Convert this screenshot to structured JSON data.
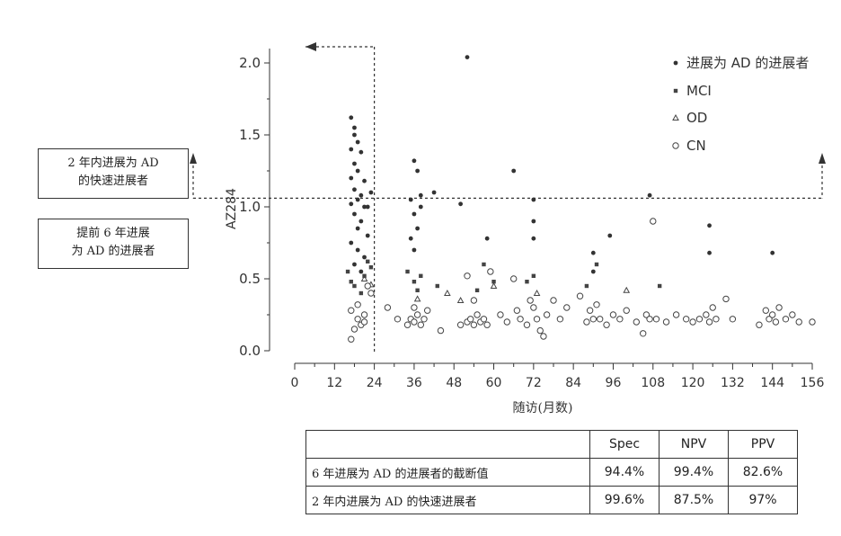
{
  "chart_data": {
    "type": "scatter",
    "xlabel": "随访(月数)",
    "ylabel": "AZ284",
    "xlim": [
      0,
      156
    ],
    "ylim": [
      0,
      2.1
    ],
    "xticks": [
      "0",
      "12",
      "24",
      "36",
      "48",
      "60",
      "72",
      "84",
      "96",
      "108",
      "120",
      "132",
      "144",
      "156"
    ],
    "yticks": [
      "0.0",
      "0.5",
      "1.0",
      "1.5",
      "2.0"
    ],
    "cutoff_y": 1.06,
    "cutoff_x": 24,
    "legend_position": "top-right",
    "series": [
      {
        "name": "进展为 AD 的进展者",
        "marker": "filled-circle",
        "points": [
          [
            17,
            1.62
          ],
          [
            18,
            1.55
          ],
          [
            18,
            1.5
          ],
          [
            19,
            1.45
          ],
          [
            17,
            1.4
          ],
          [
            20,
            1.38
          ],
          [
            18,
            1.3
          ],
          [
            19,
            1.25
          ],
          [
            17,
            1.2
          ],
          [
            21,
            1.18
          ],
          [
            18,
            1.12
          ],
          [
            20,
            1.08
          ],
          [
            19,
            1.05
          ],
          [
            17,
            1.02
          ],
          [
            21,
            1.0
          ],
          [
            18,
            0.95
          ],
          [
            20,
            0.9
          ],
          [
            19,
            0.85
          ],
          [
            22,
            0.8
          ],
          [
            17,
            0.75
          ],
          [
            19,
            0.7
          ],
          [
            21,
            0.65
          ],
          [
            18,
            0.6
          ],
          [
            20,
            0.55
          ],
          [
            23,
            1.1
          ],
          [
            22,
            1.0
          ],
          [
            36,
            1.32
          ],
          [
            37,
            1.25
          ],
          [
            35,
            1.05
          ],
          [
            36,
            0.95
          ],
          [
            37,
            0.85
          ],
          [
            38,
            1.0
          ],
          [
            35,
            0.78
          ],
          [
            36,
            0.7
          ],
          [
            38,
            1.08
          ],
          [
            42,
            1.1
          ],
          [
            50,
            1.02
          ],
          [
            52,
            2.04
          ],
          [
            58,
            0.78
          ],
          [
            66,
            1.25
          ],
          [
            72,
            1.05
          ],
          [
            72,
            0.9
          ],
          [
            72,
            0.78
          ],
          [
            90,
            0.68
          ],
          [
            90,
            0.55
          ],
          [
            95,
            0.8
          ],
          [
            107,
            1.08
          ],
          [
            125,
            0.87
          ],
          [
            125,
            0.68
          ],
          [
            144,
            0.68
          ]
        ]
      },
      {
        "name": "MCI",
        "marker": "filled-square",
        "points": [
          [
            16,
            0.55
          ],
          [
            17,
            0.48
          ],
          [
            18,
            0.45
          ],
          [
            20,
            0.4
          ],
          [
            21,
            0.52
          ],
          [
            22,
            0.62
          ],
          [
            23,
            0.58
          ],
          [
            34,
            0.55
          ],
          [
            36,
            0.48
          ],
          [
            37,
            0.42
          ],
          [
            38,
            0.52
          ],
          [
            43,
            0.45
          ],
          [
            55,
            0.42
          ],
          [
            57,
            0.6
          ],
          [
            60,
            0.48
          ],
          [
            70,
            0.48
          ],
          [
            72,
            0.52
          ],
          [
            88,
            0.45
          ],
          [
            91,
            0.6
          ],
          [
            110,
            0.45
          ]
        ]
      },
      {
        "name": "OD",
        "marker": "triangle",
        "points": [
          [
            21,
            0.5
          ],
          [
            23,
            0.46
          ],
          [
            37,
            0.36
          ],
          [
            46,
            0.4
          ],
          [
            50,
            0.35
          ],
          [
            60,
            0.45
          ],
          [
            73,
            0.4
          ],
          [
            100,
            0.42
          ]
        ]
      },
      {
        "name": "CN",
        "marker": "open-circle",
        "points": [
          [
            17,
            0.08
          ],
          [
            18,
            0.15
          ],
          [
            19,
            0.22
          ],
          [
            20,
            0.18
          ],
          [
            21,
            0.25
          ],
          [
            17,
            0.28
          ],
          [
            19,
            0.32
          ],
          [
            21,
            0.2
          ],
          [
            22,
            0.45
          ],
          [
            23,
            0.4
          ],
          [
            28,
            0.3
          ],
          [
            31,
            0.22
          ],
          [
            34,
            0.18
          ],
          [
            35,
            0.22
          ],
          [
            36,
            0.2
          ],
          [
            37,
            0.25
          ],
          [
            38,
            0.18
          ],
          [
            39,
            0.22
          ],
          [
            40,
            0.28
          ],
          [
            36,
            0.3
          ],
          [
            44,
            0.14
          ],
          [
            50,
            0.18
          ],
          [
            52,
            0.2
          ],
          [
            53,
            0.22
          ],
          [
            54,
            0.18
          ],
          [
            55,
            0.25
          ],
          [
            56,
            0.2
          ],
          [
            57,
            0.22
          ],
          [
            58,
            0.18
          ],
          [
            59,
            0.55
          ],
          [
            54,
            0.35
          ],
          [
            52,
            0.52
          ],
          [
            62,
            0.25
          ],
          [
            64,
            0.2
          ],
          [
            66,
            0.5
          ],
          [
            67,
            0.28
          ],
          [
            68,
            0.22
          ],
          [
            70,
            0.18
          ],
          [
            71,
            0.35
          ],
          [
            72,
            0.3
          ],
          [
            73,
            0.22
          ],
          [
            74,
            0.14
          ],
          [
            75,
            0.1
          ],
          [
            76,
            0.25
          ],
          [
            78,
            0.35
          ],
          [
            80,
            0.22
          ],
          [
            82,
            0.3
          ],
          [
            86,
            0.38
          ],
          [
            88,
            0.2
          ],
          [
            89,
            0.28
          ],
          [
            90,
            0.22
          ],
          [
            91,
            0.32
          ],
          [
            92,
            0.22
          ],
          [
            94,
            0.18
          ],
          [
            96,
            0.25
          ],
          [
            98,
            0.22
          ],
          [
            100,
            0.28
          ],
          [
            103,
            0.2
          ],
          [
            105,
            0.12
          ],
          [
            106,
            0.25
          ],
          [
            107,
            0.22
          ],
          [
            108,
            0.9
          ],
          [
            109,
            0.22
          ],
          [
            112,
            0.2
          ],
          [
            115,
            0.25
          ],
          [
            118,
            0.22
          ],
          [
            120,
            0.2
          ],
          [
            122,
            0.22
          ],
          [
            124,
            0.25
          ],
          [
            125,
            0.2
          ],
          [
            126,
            0.3
          ],
          [
            127,
            0.22
          ],
          [
            130,
            0.36
          ],
          [
            132,
            0.22
          ],
          [
            140,
            0.18
          ],
          [
            142,
            0.28
          ],
          [
            143,
            0.22
          ],
          [
            144,
            0.25
          ],
          [
            145,
            0.2
          ],
          [
            146,
            0.3
          ],
          [
            148,
            0.22
          ],
          [
            150,
            0.25
          ],
          [
            152,
            0.2
          ],
          [
            156,
            0.2
          ]
        ]
      }
    ]
  },
  "side_labels": {
    "rapid": {
      "line1": "2 年内进展为 AD",
      "line2": "的快速进展者"
    },
    "early": {
      "line1": "提前 6 年进展",
      "line2": "为 AD 的进展者"
    }
  },
  "stats_table": {
    "headers": [
      "",
      "Spec",
      "NPV",
      "PPV"
    ],
    "rows": [
      {
        "label": "6 年进展为 AD 的进展者的截断值",
        "spec": "94.4%",
        "npv": "99.4%",
        "ppv": "82.6%"
      },
      {
        "label": "2 年内进展为 AD 的快速进展者",
        "spec": "99.6%",
        "npv": "87.5%",
        "ppv": "97%"
      }
    ]
  }
}
